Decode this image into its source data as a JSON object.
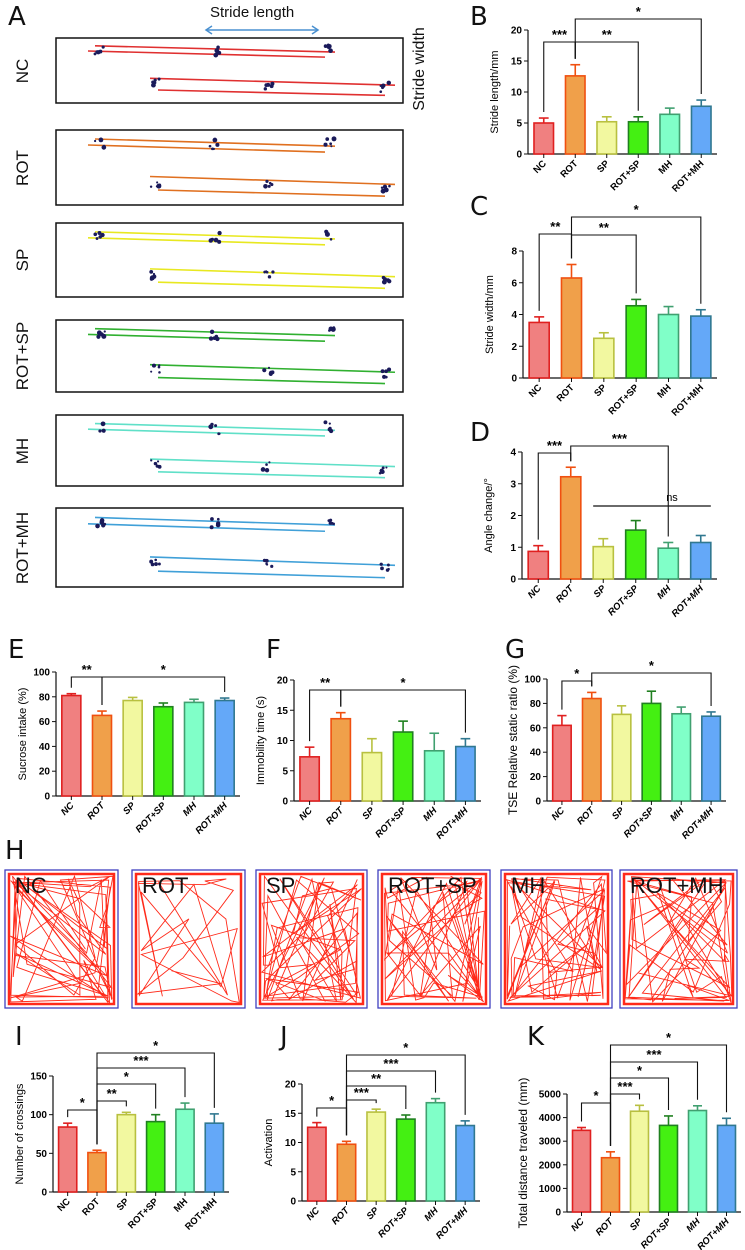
{
  "panel_letters": {
    "A": "A",
    "B": "B",
    "C": "C",
    "D": "D",
    "E": "E",
    "F": "F",
    "G": "G",
    "H": "H",
    "I": "I",
    "J": "J",
    "K": "K"
  },
  "gait": {
    "header": "Stride length",
    "side_label": "Stride width",
    "groups": [
      "NC",
      "ROT",
      "SP",
      "ROT+SP",
      "MH",
      "ROT+MH"
    ],
    "line_colors": [
      "#e03030",
      "#e07020",
      "#e8e820",
      "#30b030",
      "#60e0c8",
      "#40a0d8"
    ]
  },
  "open_field": {
    "groups": [
      "NC",
      "ROT",
      "SP",
      "ROT+SP",
      "MH",
      "ROT+MH"
    ],
    "track_color": "#ff2a1a",
    "border_color": "#4040c0"
  },
  "colors": {
    "fills": [
      "#f08080",
      "#f0a04a",
      "#f2f8a0",
      "#44f012",
      "#80ffc8",
      "#64a8f8"
    ],
    "strokes": [
      "#e02020",
      "#f05010",
      "#b8c040",
      "#208020",
      "#40a070",
      "#307890"
    ]
  },
  "chart_data": [
    {
      "id": "B",
      "type": "bar",
      "categories": [
        "NC",
        "ROT",
        "SP",
        "ROT+SP",
        "MH",
        "ROT+MH"
      ],
      "values": [
        5.0,
        12.6,
        5.2,
        5.2,
        6.4,
        7.7
      ],
      "errors": [
        0.8,
        1.8,
        0.8,
        0.8,
        1.0,
        1.0
      ],
      "ylabel": "Stride length/mm",
      "ylim": [
        0,
        20
      ],
      "yticks": [
        "0",
        "5",
        "10",
        "15",
        "20"
      ],
      "significance": [
        {
          "from": "NC",
          "to": "ROT",
          "label": "***"
        },
        {
          "from": "ROT",
          "to": "ROT+SP",
          "label": "**"
        },
        {
          "from": "ROT",
          "to": "ROT+MH",
          "label": "*"
        }
      ]
    },
    {
      "id": "C",
      "type": "bar",
      "categories": [
        "NC",
        "ROT",
        "SP",
        "ROT+SP",
        "MH",
        "ROT+MH"
      ],
      "values": [
        3.5,
        6.3,
        2.5,
        4.55,
        4.0,
        3.9
      ],
      "errors": [
        0.35,
        0.85,
        0.35,
        0.4,
        0.5,
        0.4
      ],
      "ylabel": "Stride width/mm",
      "ylim": [
        0,
        8
      ],
      "yticks": [
        "0",
        "2",
        "4",
        "6",
        "8"
      ],
      "significance": [
        {
          "from": "NC",
          "to": "ROT",
          "label": "**"
        },
        {
          "from": "ROT",
          "to": "ROT+SP",
          "label": "**"
        },
        {
          "from": "ROT",
          "to": "ROT+MH",
          "label": "*"
        }
      ]
    },
    {
      "id": "D",
      "type": "bar",
      "categories": [
        "NC",
        "ROT",
        "SP",
        "ROT+SP",
        "MH",
        "ROT+MH"
      ],
      "values": [
        0.87,
        3.22,
        1.02,
        1.54,
        0.97,
        1.15
      ],
      "errors": [
        0.18,
        0.3,
        0.25,
        0.3,
        0.18,
        0.22
      ],
      "ylabel": "Angle change/°",
      "ylim": [
        0,
        4
      ],
      "yticks": [
        "0",
        "1",
        "2",
        "3",
        "4"
      ],
      "significance": [
        {
          "from": "NC",
          "to": "ROT",
          "label": "***"
        },
        {
          "from": "ROT",
          "to": "MH",
          "label": "***"
        }
      ],
      "ns_line": {
        "from": "SP",
        "to": "ROT+MH",
        "label": "ns",
        "y": 2.3
      }
    },
    {
      "id": "E",
      "type": "bar",
      "categories": [
        "NC",
        "ROT",
        "SP",
        "ROT+SP",
        "MH",
        "ROT+MH"
      ],
      "values": [
        81,
        65,
        77,
        72,
        75.5,
        77
      ],
      "errors": [
        1.5,
        3.5,
        2.5,
        3,
        2.5,
        2
      ],
      "ylabel": "Sucrose intake (%)",
      "ylim": [
        0,
        100
      ],
      "yticks": [
        "0",
        "20",
        "40",
        "60",
        "80",
        "100"
      ],
      "significance": [
        {
          "from": "NC",
          "to": "ROT",
          "label": "**"
        },
        {
          "from": "ROT",
          "to": "ROT+MH",
          "label": "*"
        }
      ]
    },
    {
      "id": "F",
      "type": "bar",
      "categories": [
        "NC",
        "ROT",
        "SP",
        "ROT+SP",
        "MH",
        "ROT+MH"
      ],
      "values": [
        7.3,
        13.6,
        8.0,
        11.4,
        8.3,
        9.0
      ],
      "errors": [
        1.6,
        1.0,
        2.3,
        1.8,
        2.9,
        1.3
      ],
      "ylabel": "Immobility time (s)",
      "ylim": [
        0,
        20
      ],
      "yticks": [
        "0",
        "5",
        "10",
        "15",
        "20"
      ],
      "significance": [
        {
          "from": "NC",
          "to": "ROT",
          "label": "**"
        },
        {
          "from": "ROT",
          "to": "ROT+MH",
          "label": "*"
        }
      ]
    },
    {
      "id": "G",
      "type": "bar",
      "categories": [
        "NC",
        "ROT",
        "SP",
        "ROT+SP",
        "MH",
        "ROT+MH"
      ],
      "values": [
        62,
        84,
        71,
        80,
        71.5,
        69.5
      ],
      "errors": [
        8,
        5,
        7,
        10,
        5.5,
        3.5
      ],
      "ylabel": "TSE Relative static ratio (%)",
      "ylim": [
        0,
        100
      ],
      "yticks": [
        "0",
        "20",
        "40",
        "60",
        "80",
        "100"
      ],
      "significance": [
        {
          "from": "NC",
          "to": "ROT",
          "label": "*"
        },
        {
          "from": "ROT",
          "to": "ROT+MH",
          "label": "*"
        }
      ]
    },
    {
      "id": "I",
      "type": "bar",
      "categories": [
        "NC",
        "ROT",
        "SP",
        "ROT+SP",
        "MH",
        "ROT+MH"
      ],
      "values": [
        84,
        51,
        100,
        91,
        107,
        89
      ],
      "errors": [
        5,
        3,
        3,
        9,
        8,
        12
      ],
      "ylabel": "Number of crossings",
      "ylim": [
        0,
        150
      ],
      "yticks": [
        "0",
        "50",
        "100",
        "150"
      ],
      "significance": [
        {
          "from": "NC",
          "to": "ROT",
          "label": "*"
        },
        {
          "from": "ROT",
          "to": "SP",
          "label": "**"
        },
        {
          "from": "ROT",
          "to": "ROT+SP",
          "label": "*"
        },
        {
          "from": "ROT",
          "to": "MH",
          "label": "***"
        },
        {
          "from": "ROT",
          "to": "ROT+MH",
          "label": "*"
        }
      ]
    },
    {
      "id": "J",
      "type": "bar",
      "categories": [
        "NC",
        "ROT",
        "SP",
        "ROT+SP",
        "MH",
        "ROT+MH"
      ],
      "values": [
        12.6,
        9.7,
        15.2,
        14.0,
        16.8,
        12.9
      ],
      "errors": [
        0.8,
        0.5,
        0.5,
        0.7,
        0.7,
        0.8
      ],
      "ylabel": "Activation",
      "ylim": [
        0,
        20
      ],
      "yticks": [
        "0",
        "5",
        "10",
        "15",
        "20"
      ],
      "significance": [
        {
          "from": "NC",
          "to": "ROT",
          "label": "*"
        },
        {
          "from": "ROT",
          "to": "SP",
          "label": "***"
        },
        {
          "from": "ROT",
          "to": "ROT+SP",
          "label": "**"
        },
        {
          "from": "ROT",
          "to": "MH",
          "label": "***"
        },
        {
          "from": "ROT",
          "to": "ROT+MH",
          "label": "*"
        }
      ]
    },
    {
      "id": "K",
      "type": "bar",
      "categories": [
        "NC",
        "ROT",
        "SP",
        "ROT+SP",
        "MH",
        "ROT+MH"
      ],
      "values": [
        3460,
        2300,
        4270,
        3670,
        4300,
        3670
      ],
      "errors": [
        120,
        250,
        250,
        400,
        200,
        300
      ],
      "ylabel": "Total distance traveled (mm)",
      "ylim": [
        0,
        5000
      ],
      "yticks": [
        "0",
        "1000",
        "2000",
        "3000",
        "4000",
        "5000"
      ],
      "significance": [
        {
          "from": "NC",
          "to": "ROT",
          "label": "*"
        },
        {
          "from": "ROT",
          "to": "SP",
          "label": "***"
        },
        {
          "from": "ROT",
          "to": "ROT+SP",
          "label": "*"
        },
        {
          "from": "ROT",
          "to": "MH",
          "label": "***"
        },
        {
          "from": "ROT",
          "to": "ROT+MH",
          "label": "*"
        }
      ]
    }
  ]
}
